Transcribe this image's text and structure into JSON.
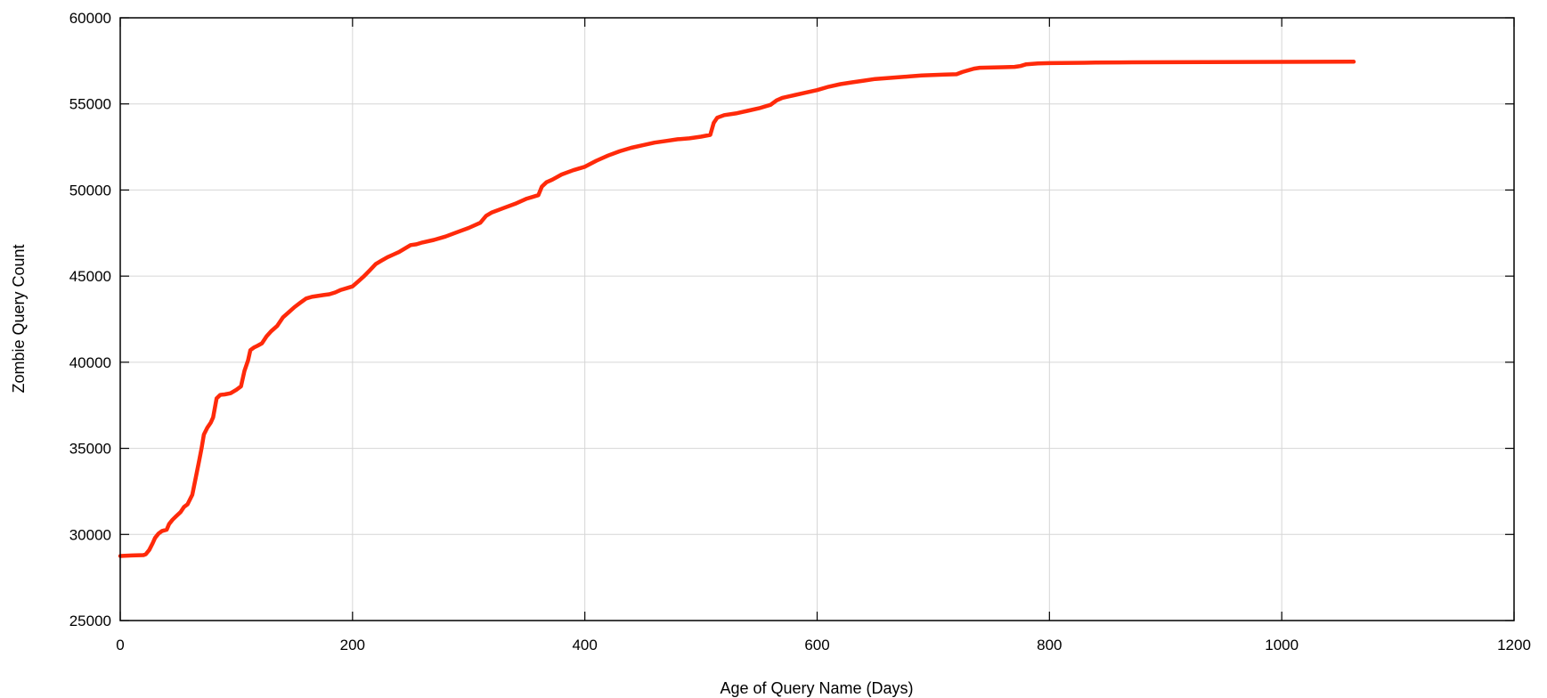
{
  "chart_data": {
    "type": "line",
    "title": "",
    "xlabel": "Age of Query Name (Days)",
    "ylabel": "Zombie Query Count",
    "xlim": [
      0,
      1200
    ],
    "ylim": [
      25000,
      60000
    ],
    "xticks": [
      "0",
      "200",
      "400",
      "600",
      "800",
      "1000",
      "1200"
    ],
    "yticks": [
      "25000",
      "30000",
      "35000",
      "40000",
      "45000",
      "50000",
      "55000",
      "60000"
    ],
    "grid": true,
    "legend": "none",
    "series": [
      {
        "color": "#ff2a0a",
        "x": [
          0,
          10,
          20,
          22,
          25,
          28,
          30,
          33,
          36,
          40,
          42,
          45,
          48,
          52,
          55,
          58,
          62,
          65,
          68,
          70,
          72,
          75,
          78,
          80,
          83,
          86,
          88,
          90,
          95,
          100,
          104,
          107,
          110,
          112,
          115,
          118,
          122,
          126,
          130,
          135,
          140,
          145,
          150,
          155,
          160,
          165,
          170,
          175,
          180,
          185,
          190,
          195,
          200,
          205,
          210,
          215,
          220,
          225,
          230,
          235,
          240,
          245,
          250,
          255,
          260,
          270,
          280,
          290,
          300,
          310,
          315,
          320,
          330,
          340,
          350,
          355,
          360,
          363,
          367,
          372,
          380,
          390,
          400,
          410,
          420,
          430,
          440,
          450,
          460,
          470,
          480,
          490,
          500,
          508,
          511,
          514,
          520,
          530,
          540,
          550,
          560,
          565,
          570,
          580,
          590,
          600,
          610,
          620,
          630,
          640,
          650,
          660,
          670,
          680,
          690,
          700,
          710,
          720,
          725,
          730,
          735,
          740,
          760,
          770,
          775,
          780,
          790,
          800,
          830,
          840,
          860,
          900,
          1000,
          1062
        ],
        "y": [
          28750,
          28780,
          28800,
          28850,
          29100,
          29500,
          29800,
          30050,
          30200,
          30280,
          30600,
          30850,
          31050,
          31300,
          31600,
          31750,
          32300,
          33300,
          34300,
          35000,
          35800,
          36200,
          36500,
          36800,
          37900,
          38100,
          38120,
          38130,
          38200,
          38400,
          38600,
          39500,
          40100,
          40700,
          40850,
          40950,
          41100,
          41500,
          41800,
          42100,
          42600,
          42900,
          43200,
          43450,
          43700,
          43800,
          43850,
          43900,
          43950,
          44050,
          44200,
          44300,
          44400,
          44700,
          45000,
          45350,
          45700,
          45900,
          46100,
          46250,
          46400,
          46600,
          46800,
          46850,
          46950,
          47100,
          47300,
          47550,
          47800,
          48100,
          48500,
          48700,
          48950,
          49200,
          49500,
          49600,
          49700,
          50200,
          50450,
          50600,
          50900,
          51150,
          51350,
          51700,
          52000,
          52250,
          52450,
          52600,
          52750,
          52850,
          52950,
          53000,
          53100,
          53200,
          53900,
          54200,
          54350,
          54450,
          54600,
          54750,
          54950,
          55200,
          55350,
          55500,
          55650,
          55800,
          56000,
          56150,
          56250,
          56350,
          56450,
          56500,
          56550,
          56600,
          56650,
          56680,
          56700,
          56720,
          56850,
          56950,
          57050,
          57100,
          57130,
          57150,
          57200,
          57300,
          57350,
          57370,
          57390,
          57400,
          57410,
          57420,
          57440,
          57450
        ]
      }
    ]
  }
}
